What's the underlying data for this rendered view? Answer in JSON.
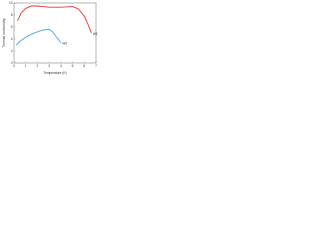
{
  "chart_data": {
    "type": "line",
    "x_label": "Temperature (K)",
    "y_label": "Thermal conductivity",
    "xlim": [
      0,
      7
    ],
    "xticks": [
      0,
      1,
      2,
      3,
      4,
      5,
      6,
      7
    ],
    "ylim": [
      0,
      10
    ],
    "yticks": [
      0,
      2,
      4,
      6,
      8,
      10
    ],
    "series": [
      {
        "name": "W1",
        "color": "#e8332e",
        "x": [
          0.3,
          0.6,
          1.0,
          1.5,
          2.0,
          3.0,
          4.0,
          5.0,
          5.5,
          6.0,
          6.3,
          6.6
        ],
        "values": [
          7.0,
          8.3,
          9.1,
          9.5,
          9.5,
          9.3,
          9.3,
          9.4,
          9.0,
          7.8,
          6.5,
          5.0
        ]
      },
      {
        "name": "W2",
        "color": "#4fa6dc",
        "x": [
          0.2,
          0.5,
          1.0,
          1.5,
          2.0,
          2.5,
          3.0,
          3.3,
          3.6,
          4.0
        ],
        "values": [
          3.0,
          3.6,
          4.3,
          4.8,
          5.2,
          5.5,
          5.6,
          5.2,
          4.4,
          3.4
        ]
      }
    ]
  }
}
